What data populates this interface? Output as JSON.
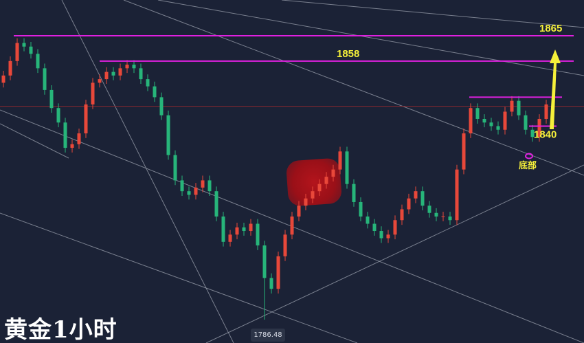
{
  "title": "黄金1小时",
  "low_label": "1786.48",
  "bottom_label": "底部",
  "colors": {
    "background": "#1b2236",
    "up": "#e8483a",
    "down": "#27b57a",
    "level_line": "#e020e0",
    "label": "#f5f03a",
    "trend_line": "#9aa0ad",
    "current_price_line": "#8a2a30",
    "watermark": "#a8121a"
  },
  "chart_data": {
    "type": "candlestick",
    "title": "黄金1小时",
    "ylim": [
      1782,
      1870
    ],
    "grid": false,
    "close": [
      1854,
      1858,
      1863,
      1862,
      1860,
      1856,
      1850,
      1845,
      1841,
      1834,
      1835,
      1838,
      1846,
      1852,
      1853,
      1855,
      1854,
      1856,
      1857,
      1856,
      1853,
      1851,
      1848,
      1843,
      1832,
      1825,
      1822,
      1821,
      1823,
      1825,
      1822,
      1815,
      1808,
      1810,
      1812,
      1811,
      1813,
      1807,
      1798,
      1795,
      1804,
      1810,
      1815,
      1818,
      1820,
      1822,
      1824,
      1826,
      1828,
      1833,
      1824,
      1819,
      1815,
      1813,
      1811,
      1809,
      1810,
      1814,
      1817,
      1820,
      1822,
      1818,
      1816,
      1815,
      1815,
      1814,
      1828,
      1838,
      1845,
      1842,
      1841,
      1840,
      1839,
      1844,
      1847,
      1843,
      1839,
      1837,
      1842,
      1846
    ],
    "low_point": 1786.48,
    "levels": [
      {
        "value": 1865,
        "label": "1865"
      },
      {
        "value": 1858,
        "label": "1858"
      },
      {
        "value": 1848,
        "label": ""
      },
      {
        "value": 1840,
        "label": "1840"
      }
    ],
    "current_price": 1845.5,
    "annotation": "底部"
  }
}
